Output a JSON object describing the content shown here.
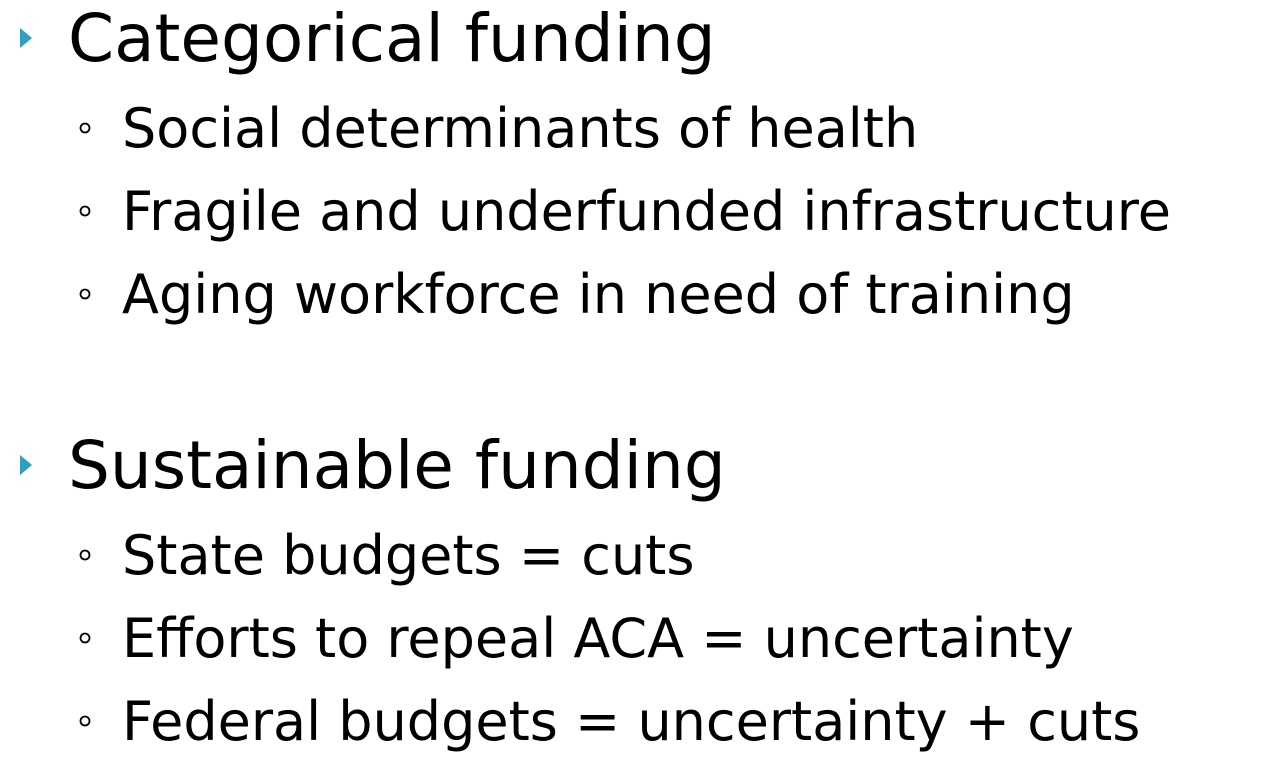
{
  "sections": [
    {
      "heading": "Categorical funding",
      "items": [
        "Social determinants of health",
        "Fragile and underfunded infrastructure",
        "Aging workforce in need of training"
      ]
    },
    {
      "heading": "Sustainable funding",
      "items": [
        "State budgets = cuts",
        "Efforts to repeal ACA = uncertainty",
        "Federal budgets = uncertainty + cuts"
      ]
    }
  ]
}
